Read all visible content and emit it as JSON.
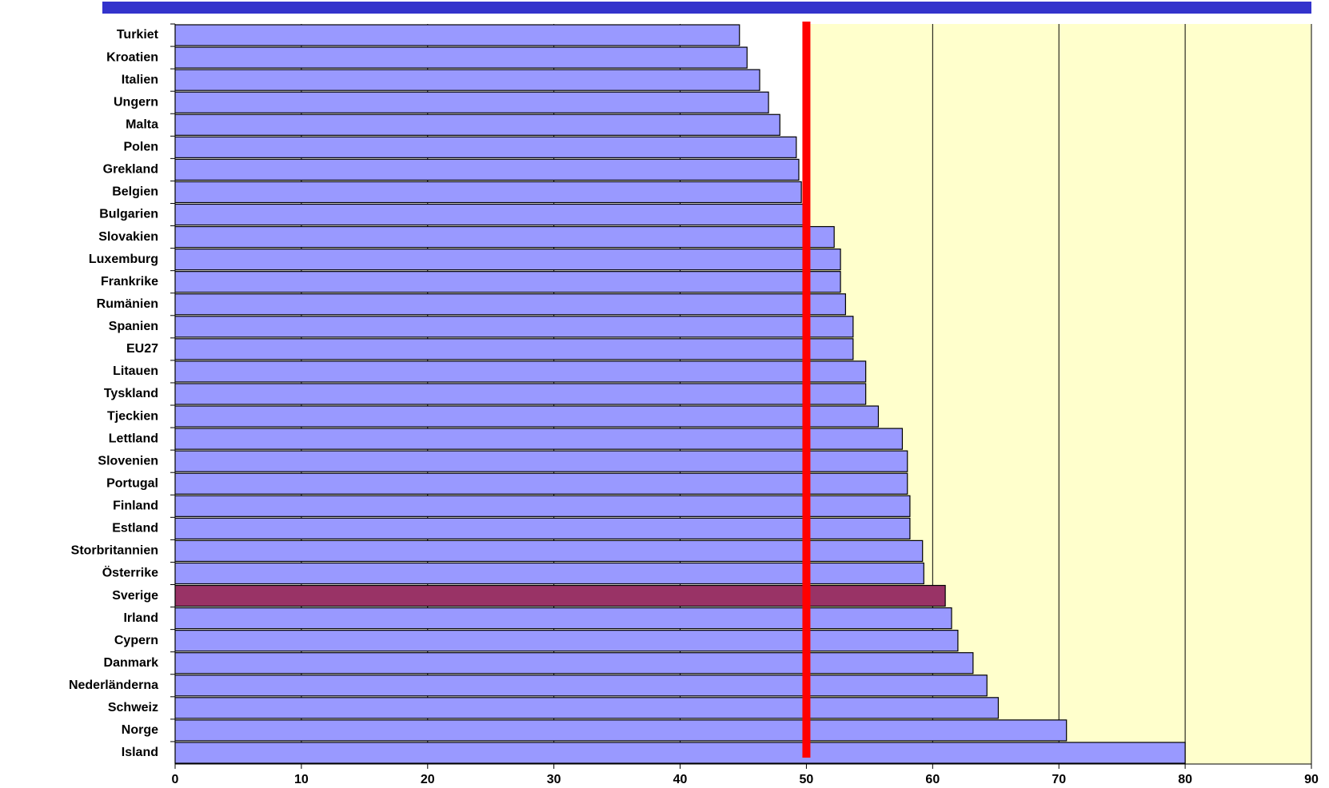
{
  "chart_data": {
    "type": "hbar",
    "categories": [
      "Turkiet",
      "Kroatien",
      "Italien",
      "Ungern",
      "Malta",
      "Polen",
      "Grekland",
      "Belgien",
      "Bulgarien",
      "Slovakien",
      "Luxemburg",
      "Frankrike",
      "Rumänien",
      "Spanien",
      "EU27",
      "Litauen",
      "Tyskland",
      "Tjeckien",
      "Lettland",
      "Slovenien",
      "Portugal",
      "Finland",
      "Estland",
      "Storbritannien",
      "Österrike",
      "Sverige",
      "Irland",
      "Cypern",
      "Danmark",
      "Nederländerna",
      "Schweiz",
      "Norge",
      "Island"
    ],
    "values": [
      44.7,
      45.3,
      46.3,
      47.0,
      47.9,
      49.2,
      49.4,
      49.6,
      50.0,
      52.2,
      52.7,
      52.7,
      53.1,
      53.7,
      53.7,
      54.7,
      54.7,
      55.7,
      57.6,
      58.0,
      58.0,
      58.2,
      58.2,
      59.2,
      59.3,
      61.0,
      61.5,
      62.0,
      63.2,
      64.3,
      65.2,
      70.6,
      80.0
    ],
    "colors": [
      "#9999ff",
      "#9999ff",
      "#9999ff",
      "#9999ff",
      "#9999ff",
      "#9999ff",
      "#9999ff",
      "#9999ff",
      "#9999ff",
      "#9999ff",
      "#9999ff",
      "#9999ff",
      "#9999ff",
      "#9999ff",
      "#9999ff",
      "#9999ff",
      "#9999ff",
      "#9999ff",
      "#9999ff",
      "#9999ff",
      "#9999ff",
      "#9999ff",
      "#9999ff",
      "#9999ff",
      "#9999ff",
      "#993366",
      "#9999ff",
      "#9999ff",
      "#9999ff",
      "#9999ff",
      "#9999ff",
      "#9999ff",
      "#9999ff"
    ],
    "xlim": [
      0,
      90
    ],
    "xticks": [
      0,
      10,
      20,
      30,
      40,
      50,
      60,
      70,
      80,
      90
    ],
    "grid": true,
    "shaded_region": {
      "from": 50,
      "to": 90,
      "color": "#ffffcc"
    },
    "reference_line": {
      "value": 50,
      "color": "#ff0000"
    }
  }
}
